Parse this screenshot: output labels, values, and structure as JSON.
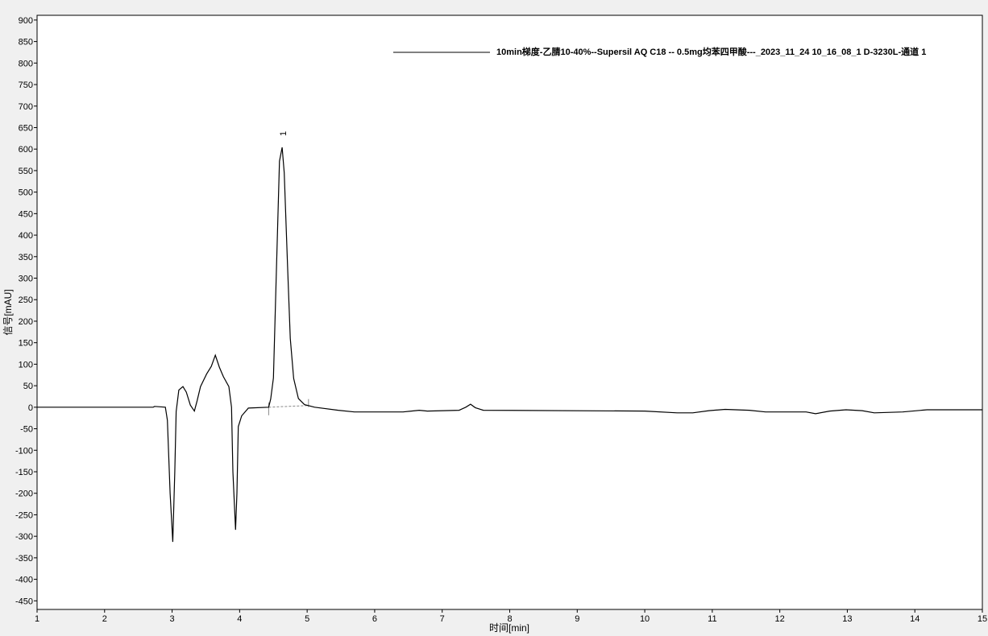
{
  "chart_data": {
    "type": "line",
    "xlabel": "时间[min]",
    "ylabel": "信号[mAU]",
    "xlim": [
      1,
      15
    ],
    "ylim": [
      -470,
      911
    ],
    "xticks": [
      1,
      2,
      3,
      4,
      5,
      6,
      7,
      8,
      9,
      10,
      11,
      12,
      13,
      14,
      15
    ],
    "yticks": [
      -450,
      -400,
      -350,
      -300,
      -250,
      -200,
      -150,
      -100,
      -50,
      0,
      50,
      100,
      150,
      200,
      250,
      300,
      350,
      400,
      450,
      500,
      550,
      600,
      650,
      700,
      750,
      800,
      850,
      900
    ],
    "grid": false,
    "legend_position": "top-right",
    "series": [
      {
        "name": "10min梯度-乙腈10-40%--Supersil AQ C18 -- 0.5mg均苯四甲酸---_2023_11_24 10_16_08_1 D-3230L-通道 1",
        "color": "#000000",
        "x": [
          1,
          2.72,
          2.74,
          2.9,
          2.93,
          2.97,
          3.01,
          3.04,
          3.06,
          3.1,
          3.16,
          3.21,
          3.27,
          3.33,
          3.37,
          3.42,
          3.51,
          3.58,
          3.64,
          3.7,
          3.76,
          3.84,
          3.88,
          3.9,
          3.94,
          3.96,
          3.98,
          4.03,
          4.13,
          4.43,
          4.46,
          4.5,
          4.54,
          4.59,
          4.63,
          4.66,
          4.71,
          4.75,
          4.8,
          4.87,
          4.96,
          5.11,
          5.46,
          5.7,
          6.42,
          6.66,
          6.78,
          7.25,
          7.35,
          7.42,
          7.49,
          7.61,
          10.0,
          10.48,
          10.71,
          10.95,
          11.19,
          11.55,
          11.79,
          12.39,
          12.53,
          12.74,
          12.98,
          13.22,
          13.4,
          13.82,
          14.18,
          15
        ],
        "y": [
          0,
          0,
          2,
          0,
          -30,
          -200,
          -313,
          -150,
          -10,
          40,
          48,
          35,
          5,
          -9,
          15,
          48,
          77,
          95,
          121,
          93,
          71,
          48,
          0,
          -150,
          -285,
          -200,
          -45,
          -20,
          -2,
          0,
          19,
          68,
          292,
          572,
          604,
          545,
          330,
          160,
          67,
          20,
          6,
          0,
          -7,
          -11,
          -11,
          -7,
          -9,
          -7,
          0,
          7,
          -1,
          -7,
          -9,
          -13,
          -13,
          -8,
          -5,
          -7,
          -11,
          -11,
          -15,
          -9,
          -6,
          -8,
          -13,
          -11,
          -6,
          -6
        ]
      }
    ],
    "peaks": [
      {
        "label": "1",
        "x": 4.63,
        "y": 604,
        "baseline_start": [
          4.43,
          0
        ],
        "baseline_end": [
          5.02,
          4
        ]
      }
    ]
  }
}
